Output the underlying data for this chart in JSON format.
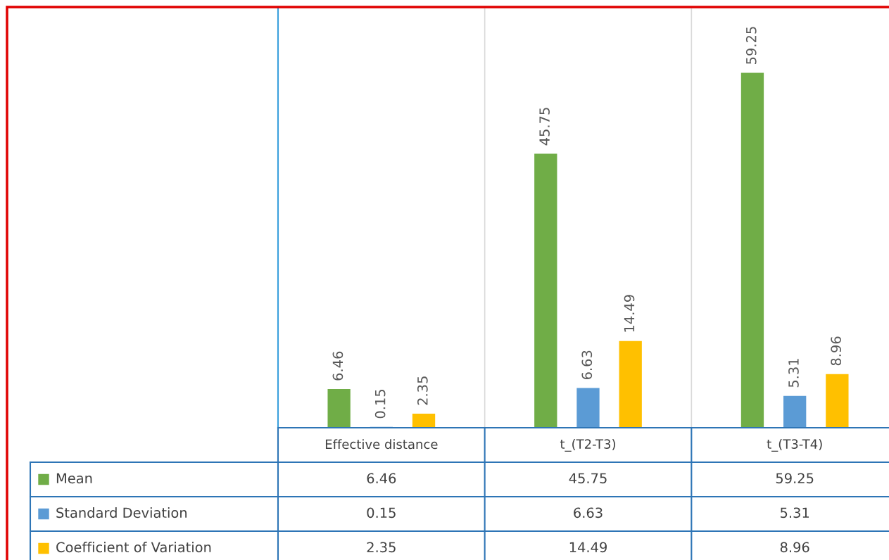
{
  "chart_data": {
    "type": "bar",
    "categories": [
      "Effective distance",
      "t_(T2-T3)",
      "t_(T3-T4)"
    ],
    "series": [
      {
        "name": "Mean",
        "color": "#70ad47",
        "values": [
          6.46,
          45.75,
          59.25
        ]
      },
      {
        "name": "Standard Deviation",
        "color": "#5b9bd5",
        "values": [
          0.15,
          6.63,
          5.31
        ]
      },
      {
        "name": "Coefficient of Variation",
        "color": "#ffc000",
        "values": [
          2.35,
          14.49,
          8.96
        ]
      }
    ],
    "ylim": [
      0,
      70
    ],
    "data_labels": true,
    "legend": "bottom left",
    "annotations": [
      "6.46",
      "45.75",
      "59.25",
      "0.15",
      "6.63",
      "5.31",
      "2.35",
      "14.49",
      "8.96"
    ]
  }
}
